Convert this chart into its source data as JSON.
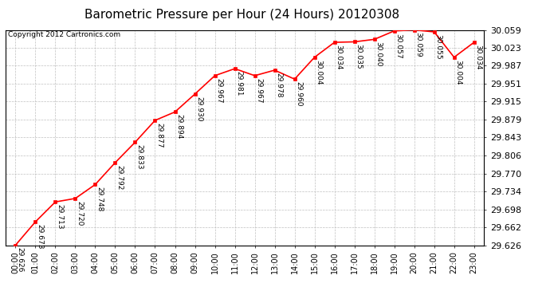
{
  "title": "Barometric Pressure per Hour (24 Hours) 20120308",
  "copyright": "Copyright 2012 Cartronics.com",
  "hours": [
    0,
    1,
    2,
    3,
    4,
    5,
    6,
    7,
    8,
    9,
    10,
    11,
    12,
    13,
    14,
    15,
    16,
    17,
    18,
    19,
    20,
    21,
    22,
    23
  ],
  "hour_labels": [
    "00:00",
    "01:00",
    "02:00",
    "03:00",
    "04:00",
    "05:00",
    "06:00",
    "07:00",
    "08:00",
    "09:00",
    "10:00",
    "11:00",
    "12:00",
    "13:00",
    "14:00",
    "15:00",
    "16:00",
    "17:00",
    "18:00",
    "19:00",
    "20:00",
    "21:00",
    "22:00",
    "23:00"
  ],
  "values": [
    29.626,
    29.673,
    29.713,
    29.72,
    29.748,
    29.792,
    29.833,
    29.877,
    29.894,
    29.93,
    29.967,
    29.981,
    29.967,
    29.978,
    29.96,
    30.004,
    30.034,
    30.035,
    30.04,
    30.057,
    30.059,
    30.055,
    30.004,
    30.034
  ],
  "yticks": [
    29.626,
    29.662,
    29.698,
    29.734,
    29.77,
    29.806,
    29.843,
    29.879,
    29.915,
    29.951,
    29.987,
    30.023,
    30.059
  ],
  "line_color": "#ff0000",
  "marker_color": "#ff0000",
  "bg_color": "#ffffff",
  "grid_color": "#c0c0c0",
  "title_fontsize": 11,
  "annotation_fontsize": 6.5,
  "copyright_fontsize": 6.5,
  "tick_fontsize": 7,
  "ytick_fontsize": 8
}
